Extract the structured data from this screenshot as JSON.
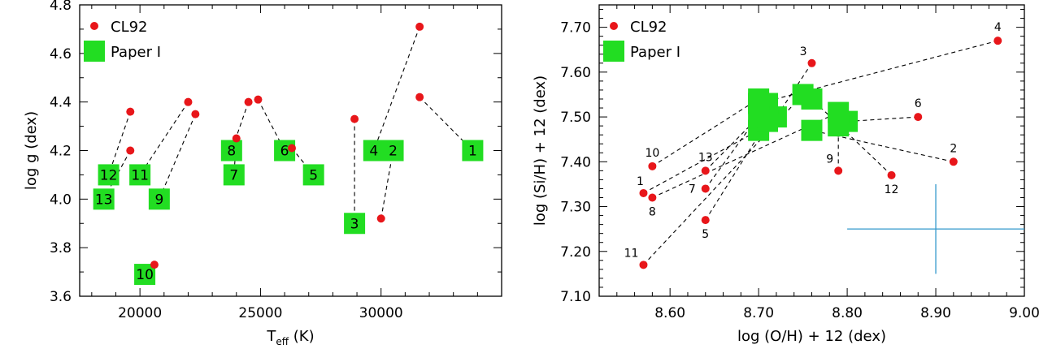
{
  "chart_data": [
    {
      "type": "scatter",
      "xlabel": "T",
      "xlabel_sub": "eff",
      "xlabel_unit": "(K)",
      "ylabel": "log g (dex)",
      "xlim": [
        17500,
        35000
      ],
      "ylim": [
        3.6,
        4.8
      ],
      "x_ticks": [
        20000,
        25000,
        30000
      ],
      "y_ticks": [
        3.6,
        3.8,
        4.0,
        4.2,
        4.4,
        4.6,
        4.8
      ],
      "y_tick_labels": [
        "3.6",
        "3.8",
        "4.0",
        "4.2",
        "4.4",
        "4.6",
        "4.8"
      ],
      "legend": {
        "position": "top-left",
        "entries": [
          "CL92",
          "Paper I"
        ]
      },
      "series": [
        {
          "name": "CL92",
          "color": "#e8161a",
          "points": [
            {
              "id": "1",
              "x": 31600,
              "y": 4.42
            },
            {
              "id": "2",
              "x": 30000,
              "y": 3.92
            },
            {
              "id": "3",
              "x": 28900,
              "y": 4.33
            },
            {
              "id": "4",
              "x": 31600,
              "y": 4.71
            },
            {
              "id": "5",
              "x": 26300,
              "y": 4.21
            },
            {
              "id": "6",
              "x": 24900,
              "y": 4.41
            },
            {
              "id": "7",
              "x": 24000,
              "y": 4.25
            },
            {
              "id": "8",
              "x": 24500,
              "y": 4.4
            },
            {
              "id": "9",
              "x": 22300,
              "y": 4.35
            },
            {
              "id": "10",
              "x": 20600,
              "y": 3.73
            },
            {
              "id": "11",
              "x": 22000,
              "y": 4.4
            },
            {
              "id": "12",
              "x": 19600,
              "y": 4.36
            },
            {
              "id": "13",
              "x": 19600,
              "y": 4.2
            }
          ]
        },
        {
          "name": "Paper I",
          "color": "#22dd22",
          "points": [
            {
              "id": "1",
              "x": 33800,
              "y": 4.2
            },
            {
              "id": "2",
              "x": 30500,
              "y": 4.2
            },
            {
              "id": "3",
              "x": 28900,
              "y": 3.9
            },
            {
              "id": "4",
              "x": 29700,
              "y": 4.2
            },
            {
              "id": "5",
              "x": 27200,
              "y": 4.1
            },
            {
              "id": "6",
              "x": 26000,
              "y": 4.2
            },
            {
              "id": "7",
              "x": 23900,
              "y": 4.1
            },
            {
              "id": "8",
              "x": 23800,
              "y": 4.2
            },
            {
              "id": "9",
              "x": 20800,
              "y": 4.0
            },
            {
              "id": "10",
              "x": 20200,
              "y": 3.69
            },
            {
              "id": "11",
              "x": 20000,
              "y": 4.1
            },
            {
              "id": "12",
              "x": 18700,
              "y": 4.1
            },
            {
              "id": "13",
              "x": 18500,
              "y": 4.0
            }
          ]
        }
      ],
      "grid": false
    },
    {
      "type": "scatter",
      "xlabel": "log (O/H) + 12 (dex)",
      "ylabel": "log (Si/H) + 12 (dex)",
      "xlim": [
        8.52,
        9.0
      ],
      "ylim": [
        7.1,
        7.75
      ],
      "x_ticks": [
        8.6,
        8.7,
        8.8,
        8.9,
        9.0
      ],
      "x_tick_labels": [
        "8.60",
        "8.70",
        "8.80",
        "8.90",
        "9.00"
      ],
      "y_ticks": [
        7.1,
        7.2,
        7.3,
        7.4,
        7.5,
        7.6,
        7.7
      ],
      "y_tick_labels": [
        "7.10",
        "7.20",
        "7.30",
        "7.40",
        "7.50",
        "7.60",
        "7.70"
      ],
      "legend": {
        "position": "top-left",
        "entries": [
          "CL92",
          "Paper I"
        ]
      },
      "error_bar": {
        "x": 8.9,
        "y": 7.25,
        "xerr": 0.1,
        "yerr": 0.1,
        "color": "#3399cc"
      },
      "series": [
        {
          "name": "CL92",
          "color": "#e8161a",
          "points": [
            {
              "id": "1",
              "x": 8.57,
              "y": 7.33
            },
            {
              "id": "2",
              "x": 8.92,
              "y": 7.4
            },
            {
              "id": "3",
              "x": 8.76,
              "y": 7.62
            },
            {
              "id": "4",
              "x": 8.97,
              "y": 7.67
            },
            {
              "id": "5",
              "x": 8.64,
              "y": 7.27
            },
            {
              "id": "6",
              "x": 8.88,
              "y": 7.5
            },
            {
              "id": "7",
              "x": 8.64,
              "y": 7.34
            },
            {
              "id": "8",
              "x": 8.58,
              "y": 7.32
            },
            {
              "id": "9",
              "x": 8.79,
              "y": 7.38
            },
            {
              "id": "10",
              "x": 8.58,
              "y": 7.39
            },
            {
              "id": "11",
              "x": 8.57,
              "y": 7.17
            },
            {
              "id": "12",
              "x": 8.85,
              "y": 7.37
            },
            {
              "id": "13",
              "x": 8.64,
              "y": 7.38
            }
          ]
        },
        {
          "name": "Paper I",
          "color": "#22dd22",
          "points": [
            {
              "id": "1",
              "x": 8.7,
              "y": 7.47
            },
            {
              "id": "2",
              "x": 8.76,
              "y": 7.47
            },
            {
              "id": "3",
              "x": 8.72,
              "y": 7.5
            },
            {
              "id": "4",
              "x": 8.7,
              "y": 7.53
            },
            {
              "id": "5",
              "x": 8.71,
              "y": 7.49
            },
            {
              "id": "6",
              "x": 8.8,
              "y": 7.49
            },
            {
              "id": "7",
              "x": 8.71,
              "y": 7.53
            },
            {
              "id": "8",
              "x": 8.79,
              "y": 7.51
            },
            {
              "id": "9",
              "x": 8.79,
              "y": 7.48
            },
            {
              "id": "10",
              "x": 8.7,
              "y": 7.54
            },
            {
              "id": "11",
              "x": 8.75,
              "y": 7.55
            },
            {
              "id": "12",
              "x": 8.76,
              "y": 7.54
            },
            {
              "id": "13",
              "x": 8.7,
              "y": 7.5
            }
          ]
        }
      ],
      "labeled_ids": [
        {
          "id": "1",
          "anchor": "below-left"
        },
        {
          "id": "2",
          "anchor": "above"
        },
        {
          "id": "3",
          "anchor": "above-left"
        },
        {
          "id": "4",
          "anchor": "above"
        },
        {
          "id": "5",
          "anchor": "below"
        },
        {
          "id": "6",
          "anchor": "above"
        },
        {
          "id": "7",
          "anchor": "left"
        },
        {
          "id": "8",
          "anchor": "below"
        },
        {
          "id": "9",
          "anchor": "above-left"
        },
        {
          "id": "10",
          "anchor": "above"
        },
        {
          "id": "11",
          "anchor": "above-left"
        },
        {
          "id": "12",
          "anchor": "below-right"
        },
        {
          "id": "13",
          "anchor": "above"
        }
      ],
      "grid": false
    }
  ]
}
